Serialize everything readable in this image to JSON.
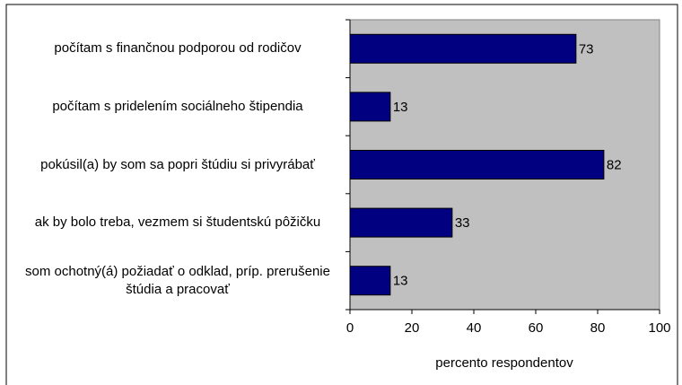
{
  "chart_data": {
    "type": "bar",
    "orientation": "horizontal",
    "categories": [
      "počítam s finančnou podporou od rodičov",
      "počítam s pridelením sociálneho štipendia",
      "pokúsil(a) by som sa popri štúdiu si privyrábať",
      "ak by bolo treba, vezmem si študentskú pôžičku",
      "som ochotný(á) požiadať o odklad, príp. prerušenie štúdia a pracovať"
    ],
    "values": [
      73,
      13,
      82,
      33,
      13
    ],
    "color": "#000080",
    "xlabel": "percento respondentov",
    "xlim": [
      0,
      100
    ],
    "xticks": [
      0,
      20,
      40,
      60,
      80,
      100
    ],
    "grid": false
  }
}
